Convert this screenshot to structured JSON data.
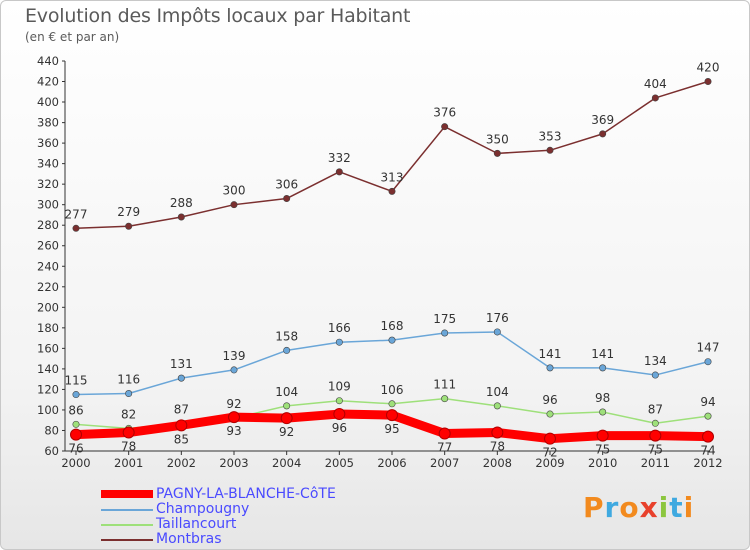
{
  "header": {
    "title": "Evolution des Impôts locaux par Habitant",
    "subtitle": "(en € et par an)"
  },
  "logo": {
    "text": "Proxiti",
    "letters": [
      "P",
      "r",
      "o",
      "x",
      "i",
      "t",
      "i"
    ],
    "colors": [
      "#f28a1e",
      "#3fa9e0",
      "#f28a1e",
      "#e8412c",
      "#8cc63f",
      "#3fa9e0",
      "#f28a1e"
    ]
  },
  "chart_data": {
    "type": "line",
    "x": [
      "2000",
      "2001",
      "2002",
      "2003",
      "2004",
      "2005",
      "2006",
      "2007",
      "2008",
      "2009",
      "2010",
      "2011",
      "2012"
    ],
    "ylim": [
      60,
      440
    ],
    "yticks": [
      60,
      80,
      100,
      120,
      140,
      160,
      180,
      200,
      220,
      240,
      260,
      280,
      300,
      320,
      340,
      360,
      380,
      400,
      420,
      440
    ],
    "grid": false,
    "legend_position": "bottom-left",
    "series": [
      {
        "name": "PAGNY-LA-BLANCHE-CôTE",
        "legend_label": "PAGNY-LA-BLANCHE-CôTE",
        "color": "#ff0000",
        "values": [
          76,
          78,
          85,
          93,
          92,
          96,
          95,
          77,
          78,
          72,
          75,
          75,
          74
        ],
        "thick": true
      },
      {
        "name": "Champougny",
        "legend_label": "Champougny",
        "color": "#6aa6d8",
        "values": [
          115,
          116,
          131,
          139,
          158,
          166,
          168,
          175,
          176,
          141,
          141,
          134,
          147
        ],
        "thick": false
      },
      {
        "name": "Taillancourt",
        "legend_label": "Taillancourt",
        "color": "#9ee07a",
        "values": [
          86,
          82,
          87,
          92,
          104,
          109,
          106,
          111,
          104,
          96,
          98,
          87,
          94
        ],
        "thick": false
      },
      {
        "name": "Montbras",
        "legend_label": "Montbras",
        "color": "#7b2f2f",
        "values": [
          277,
          279,
          288,
          300,
          306,
          332,
          313,
          376,
          350,
          353,
          369,
          404,
          420
        ],
        "thick": false
      }
    ]
  }
}
